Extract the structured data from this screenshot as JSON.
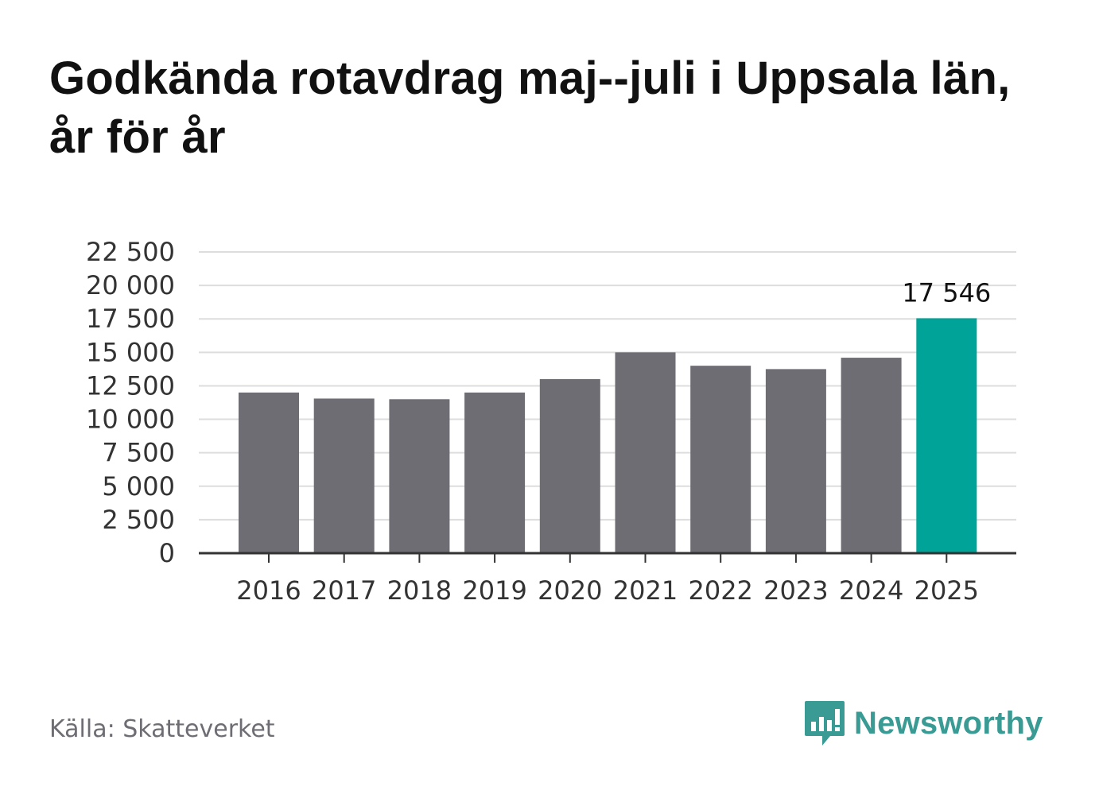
{
  "title": "Godkända rotavdrag maj--juli i Uppsala län, år för år",
  "source": "Källa: Skatteverket",
  "brand": {
    "name": "Newsworthy",
    "logo_icon": "newsworthy-bar-icon"
  },
  "colors": {
    "default_bar": "#6e6d73",
    "highlight_bar": "#00a397",
    "grid": "#dddddd",
    "axis": "#333333",
    "brand": "#3a9a94"
  },
  "chart_data": {
    "type": "bar",
    "title": "Godkända rotavdrag maj--juli i Uppsala län, år för år",
    "xlabel": "",
    "ylabel": "",
    "categories": [
      "2016",
      "2017",
      "2018",
      "2019",
      "2020",
      "2021",
      "2022",
      "2023",
      "2024",
      "2025"
    ],
    "values": [
      12000,
      11550,
      11500,
      12000,
      13000,
      15000,
      14000,
      13750,
      14600,
      17546
    ],
    "highlight_index": 9,
    "data_labels": [
      {
        "index": 9,
        "text": "17 546"
      }
    ],
    "yticks": [
      0,
      2500,
      5000,
      7500,
      10000,
      12500,
      15000,
      17500,
      20000,
      22500
    ],
    "ytick_labels": [
      "0",
      "2 500",
      "5 000",
      "7 500",
      "10 000",
      "12 500",
      "15 000",
      "17 500",
      "20 000",
      "22 500"
    ],
    "ylim": [
      0,
      22500
    ],
    "grid": true,
    "legend": "none"
  }
}
